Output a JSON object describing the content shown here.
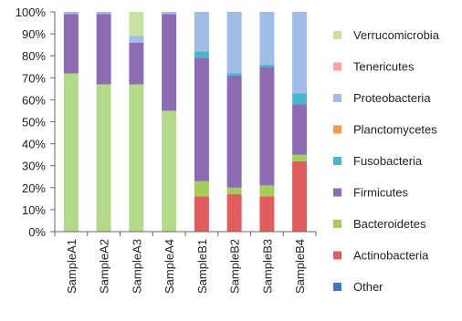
{
  "chart_data": {
    "type": "bar",
    "stacked": true,
    "percent": true,
    "categories": [
      "SampleA1",
      "SampleA2",
      "SampleA3",
      "SampleA4",
      "SampleB1",
      "SampleB2",
      "SampleB3",
      "SampleB4"
    ],
    "series": [
      {
        "name": "Other",
        "color": "#4472c4",
        "values": [
          0,
          0,
          0,
          0,
          0,
          0,
          0,
          0
        ]
      },
      {
        "name": "Actinobacteria",
        "color": "#e05d5d",
        "values": [
          0,
          0,
          0,
          0,
          16,
          17,
          16,
          32
        ]
      },
      {
        "name": "Bacteroidetes",
        "color": "#a6cd5a",
        "values": [
          0,
          0,
          0,
          0,
          7,
          3,
          5,
          3
        ]
      },
      {
        "name": "Firmicutes",
        "color": "#8d6cb3",
        "values": [
          27,
          32,
          19,
          44,
          56,
          51,
          54,
          23
        ]
      },
      {
        "name": "Fusobacteria",
        "color": "#49b6cc",
        "values": [
          0,
          0,
          0,
          0,
          3,
          1,
          1,
          5
        ]
      },
      {
        "name": "Planctomycetes",
        "color": "#f79a4a",
        "values": [
          0,
          0,
          0,
          0,
          0,
          0,
          0,
          0
        ]
      },
      {
        "name": "Proteobacteria",
        "color": "#9fbde6",
        "values": [
          1,
          1,
          3,
          1,
          18,
          28,
          24,
          37
        ]
      },
      {
        "name": "Tenericutes",
        "color": "#f4a3a3",
        "values": [
          0,
          0,
          0,
          0,
          0,
          0,
          0,
          0
        ]
      },
      {
        "name": "Verrucomicrobia",
        "color": "#c8e3a0",
        "values": [
          0,
          0,
          11,
          0,
          0,
          0,
          0,
          0
        ]
      }
    ],
    "base_segment": {
      "color": "#b5d98a",
      "values": [
        72,
        67,
        67,
        55,
        0,
        0,
        0,
        0
      ]
    },
    "ylim": [
      0,
      100
    ],
    "yticks": [
      "0%",
      "10%",
      "20%",
      "30%",
      "40%",
      "50%",
      "60%",
      "70%",
      "80%",
      "90%",
      "100%"
    ],
    "legend_order": [
      "Verrucomicrobia",
      "Tenericutes",
      "Proteobacteria",
      "Planctomycetes",
      "Fusobacteria",
      "Firmicutes",
      "Bacteroidetes",
      "Actinobacteria",
      "Other"
    ],
    "legend_position": "right",
    "grid": false
  }
}
